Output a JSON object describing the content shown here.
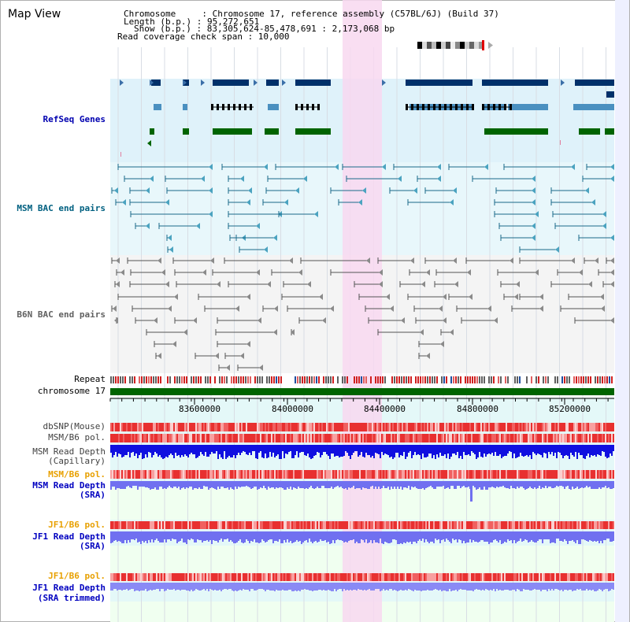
{
  "header": {
    "title": "Map View",
    "lines": [
      "Chromosome     : Chromosome 17, reference assembly (C57BL/6J) (Build 37)",
      "Length (b.p.) : 95,272,651",
      "Show (b.p.) : 83,305,624-85,478,691 : 2,173,068 bp",
      "Read coverage check span : 10,000"
    ]
  },
  "tracks": [
    {
      "label": "RefSeq Genes",
      "color": "#0000b0"
    },
    {
      "label": "MSM BAC end pairs",
      "color": "#006080"
    },
    {
      "label": "B6N BAC end pairs",
      "color": "#606060"
    },
    {
      "label": "Repeat",
      "color": "#000000"
    },
    {
      "label": "chromosome 17",
      "color": "#000000"
    },
    {
      "label": "dbSNP(Mouse)",
      "color": "#404040"
    },
    {
      "label": "MSM/B6 pol.",
      "color": "#404040"
    },
    {
      "label": "MSM Read Depth",
      "color": "#404040"
    },
    {
      "label": "(Capillary)",
      "color": "#404040"
    },
    {
      "label": "MSM/B6 pol.",
      "color": "#e8a000"
    },
    {
      "label": "MSM Read Depth",
      "color": "#0000c0"
    },
    {
      "label": "(SRA)",
      "color": "#0000c0"
    },
    {
      "label": "JF1/B6 pol.",
      "color": "#e8a000"
    },
    {
      "label": "JF1 Read Depth",
      "color": "#0000c0"
    },
    {
      "label": "(SRA)",
      "color": "#0000c0"
    },
    {
      "label": "JF1/B6 pol.",
      "color": "#e8a000"
    },
    {
      "label": "JF1 Read Depth",
      "color": "#0000c0"
    },
    {
      "label": "(SRA trimmed)",
      "color": "#0000c0"
    }
  ],
  "axis": {
    "ticks": [
      "83600000",
      "84000000",
      "84400000",
      "84800000",
      "85200000"
    ]
  },
  "colors": {
    "highlight": "#f8d8f0",
    "gene_navy": "#00306a",
    "gene_light": "#4a90c0",
    "gene_green": "#006400",
    "msm_bac": "#1a6a8a",
    "b6n_bac": "#555555",
    "chromosome_bar": "#006400",
    "pol_red": "#e83030",
    "depth_blue": "#1010e0",
    "depth_sra": "#7070f0"
  }
}
